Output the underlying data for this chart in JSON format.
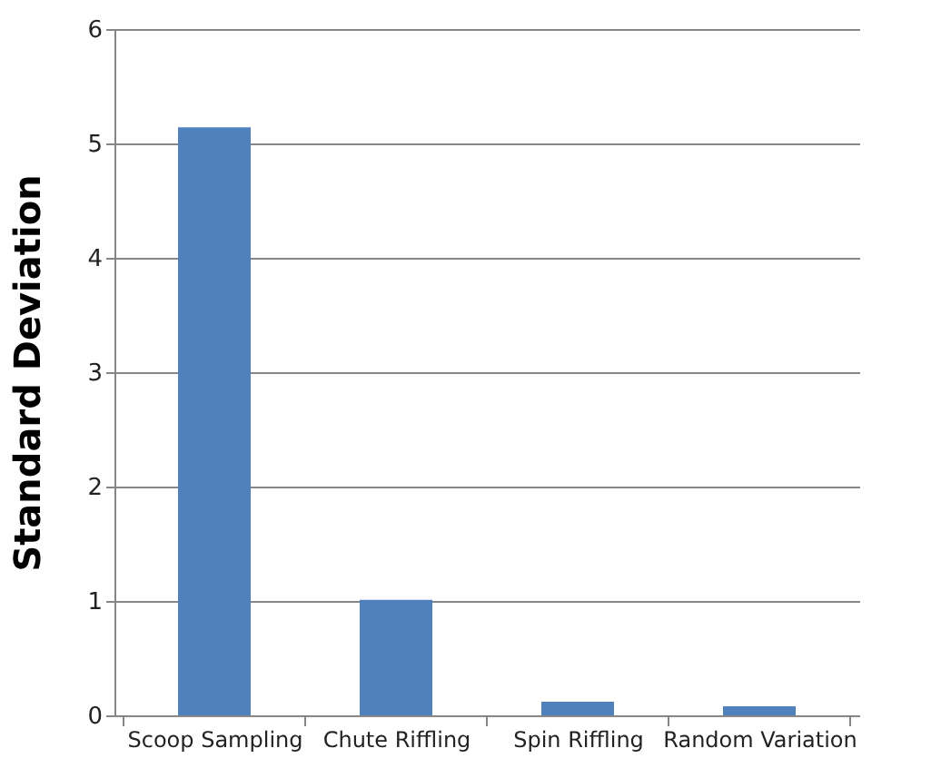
{
  "chart_data": {
    "type": "bar",
    "ylabel": "Standard Deviation",
    "categories": [
      "Scoop Sampling",
      "Chute Riffling",
      "Spin Riffling",
      "Random Variation"
    ],
    "values": [
      5.14,
      1.01,
      0.12,
      0.08
    ],
    "color": "#4f81bd",
    "ylim": [
      0,
      6
    ],
    "yticks": [
      0,
      1,
      2,
      3,
      4,
      5,
      6
    ],
    "grid": "y"
  }
}
